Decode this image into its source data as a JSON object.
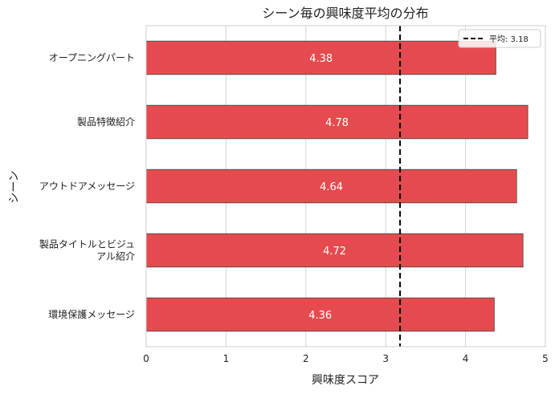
{
  "chart_data": {
    "type": "bar",
    "orientation": "horizontal",
    "title": "シーン毎の興味度平均の分布",
    "xlabel": "興味度スコア",
    "ylabel": "シーン",
    "xlim": [
      0,
      5
    ],
    "xticks": [
      "0",
      "1",
      "2",
      "3",
      "4",
      "5"
    ],
    "grid": true,
    "legend_position": "top-right",
    "bar_color": "#e54b4e",
    "mean_line": {
      "value": 3.18,
      "label": "平均: 3.18"
    },
    "categories": [
      [
        "オープニングパート"
      ],
      [
        "製品特徴紹介"
      ],
      [
        "アウトドアメッセージ"
      ],
      [
        "製品タイトルとビジュ",
        "アル紹介"
      ],
      [
        "環境保護メッセージ"
      ]
    ],
    "values": [
      4.38,
      4.78,
      4.64,
      4.72,
      4.36
    ],
    "value_labels": [
      "4.38",
      "4.78",
      "4.64",
      "4.72",
      "4.36"
    ]
  }
}
